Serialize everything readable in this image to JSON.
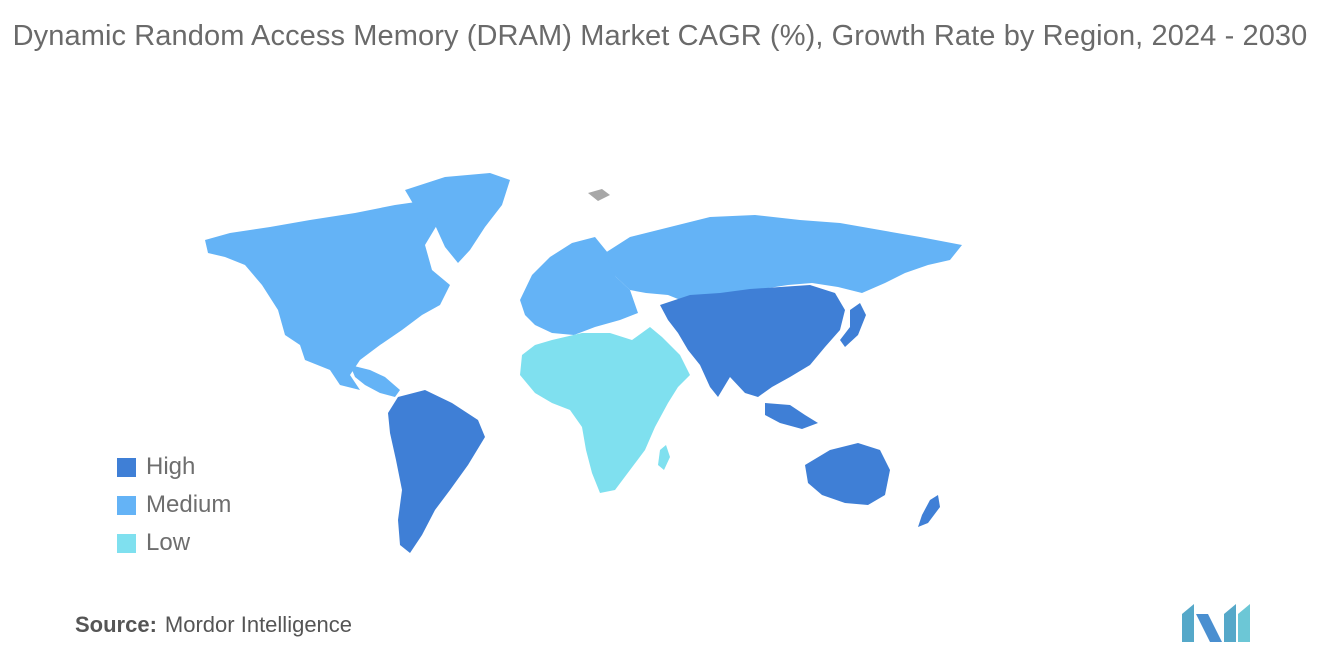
{
  "title": "Dynamic Random Access Memory (DRAM) Market CAGR (%), Growth Rate by Region, 2024 - 2030",
  "colors": {
    "high": "#3f7fd6",
    "medium": "#64b3f6",
    "low": "#7fe0ef",
    "no_data": "#a7a7a7",
    "logo": "#55a8c9"
  },
  "legend": [
    {
      "label": "High",
      "color": "#3f7fd6"
    },
    {
      "label": "Medium",
      "color": "#64b3f6"
    },
    {
      "label": "Low",
      "color": "#7fe0ef"
    }
  ],
  "regions": {
    "north_america": "Medium",
    "europe": "Medium",
    "south_america": "High",
    "middle_east_and_africa": "Low",
    "asia_pacific": "High"
  },
  "source": {
    "label": "Source:",
    "value": "Mordor Intelligence"
  }
}
